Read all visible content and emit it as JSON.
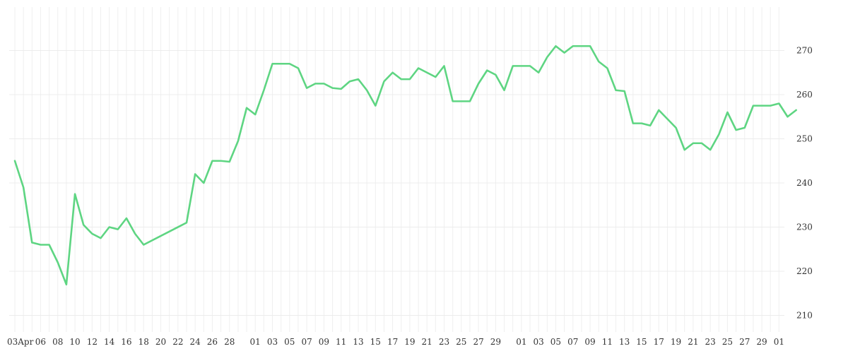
{
  "chart_data": {
    "type": "line",
    "title": "",
    "xlabel": "",
    "ylabel": "",
    "grid": true,
    "ylim": [
      206,
      276
    ],
    "y_ticks": [
      210,
      220,
      230,
      240,
      250,
      260,
      270
    ],
    "x_tick_labels": [
      "03Apr",
      "06",
      "08",
      "10",
      "12",
      "14",
      "16",
      "18",
      "20",
      "22",
      "24",
      "26",
      "28",
      "01",
      "03",
      "05",
      "07",
      "09",
      "11",
      "13",
      "15",
      "17",
      "19",
      "21",
      "23",
      "25",
      "27",
      "29",
      "01",
      "03",
      "05",
      "07",
      "09",
      "11",
      "13",
      "15",
      "17",
      "19",
      "21",
      "23",
      "25",
      "27",
      "29",
      "01"
    ],
    "series": [
      {
        "name": "",
        "color": "#5ed582",
        "values": [
          [
            "2020-04-03",
            245.0
          ],
          [
            "2020-04-04",
            239.0
          ],
          [
            "2020-04-05",
            226.5
          ],
          [
            "2020-04-06",
            226.0
          ],
          [
            "2020-04-07",
            226.0
          ],
          [
            "2020-04-08",
            222.0
          ],
          [
            "2020-04-09",
            217.0
          ],
          [
            "2020-04-10",
            237.5
          ],
          [
            "2020-04-11",
            230.5
          ],
          [
            "2020-04-12",
            228.5
          ],
          [
            "2020-04-13",
            227.5
          ],
          [
            "2020-04-14",
            230.0
          ],
          [
            "2020-04-15",
            229.5
          ],
          [
            "2020-04-16",
            232.0
          ],
          [
            "2020-04-17",
            228.5
          ],
          [
            "2020-04-18",
            226.0
          ],
          [
            "2020-04-23",
            231.0
          ],
          [
            "2020-04-24",
            242.0
          ],
          [
            "2020-04-25",
            240.0
          ],
          [
            "2020-04-26",
            245.0
          ],
          [
            "2020-04-27",
            245.0
          ],
          [
            "2020-04-28",
            244.8
          ],
          [
            "2020-04-29",
            249.5
          ],
          [
            "2020-04-30",
            257.0
          ],
          [
            "2020-05-01",
            255.5
          ],
          [
            "2020-05-02",
            261.0
          ],
          [
            "2020-05-03",
            267.0
          ],
          [
            "2020-05-04",
            267.0
          ],
          [
            "2020-05-05",
            267.0
          ],
          [
            "2020-05-06",
            266.0
          ],
          [
            "2020-05-07",
            261.5
          ],
          [
            "2020-05-08",
            262.5
          ],
          [
            "2020-05-09",
            262.5
          ],
          [
            "2020-05-10",
            261.5
          ],
          [
            "2020-05-11",
            261.3
          ],
          [
            "2020-05-12",
            263.0
          ],
          [
            "2020-05-13",
            263.5
          ],
          [
            "2020-05-14",
            261.0
          ],
          [
            "2020-05-15",
            257.5
          ],
          [
            "2020-05-16",
            263.0
          ],
          [
            "2020-05-17",
            265.0
          ],
          [
            "2020-05-18",
            263.5
          ],
          [
            "2020-05-19",
            263.5
          ],
          [
            "2020-05-20",
            266.0
          ],
          [
            "2020-05-21",
            265.0
          ],
          [
            "2020-05-22",
            264.0
          ],
          [
            "2020-05-23",
            266.5
          ],
          [
            "2020-05-24",
            258.5
          ],
          [
            "2020-05-25",
            258.5
          ],
          [
            "2020-05-26",
            258.5
          ],
          [
            "2020-05-27",
            262.5
          ],
          [
            "2020-05-28",
            265.5
          ],
          [
            "2020-05-29",
            264.5
          ],
          [
            "2020-05-30",
            261.0
          ],
          [
            "2020-05-31",
            266.5
          ],
          [
            "2020-06-01",
            266.5
          ],
          [
            "2020-06-02",
            266.5
          ],
          [
            "2020-06-03",
            265.0
          ],
          [
            "2020-06-04",
            268.5
          ],
          [
            "2020-06-05",
            271.0
          ],
          [
            "2020-06-06",
            269.5
          ],
          [
            "2020-06-07",
            271.0
          ],
          [
            "2020-06-08",
            271.0
          ],
          [
            "2020-06-09",
            271.0
          ],
          [
            "2020-06-10",
            267.5
          ],
          [
            "2020-06-11",
            266.0
          ],
          [
            "2020-06-12",
            261.0
          ],
          [
            "2020-06-13",
            260.8
          ],
          [
            "2020-06-14",
            253.5
          ],
          [
            "2020-06-15",
            253.5
          ],
          [
            "2020-06-16",
            253.0
          ],
          [
            "2020-06-17",
            256.5
          ],
          [
            "2020-06-18",
            254.5
          ],
          [
            "2020-06-19",
            252.5
          ],
          [
            "2020-06-20",
            247.5
          ],
          [
            "2020-06-21",
            249.0
          ],
          [
            "2020-06-22",
            249.0
          ],
          [
            "2020-06-23",
            247.5
          ],
          [
            "2020-06-24",
            251.0
          ],
          [
            "2020-06-25",
            256.0
          ],
          [
            "2020-06-26",
            252.0
          ],
          [
            "2020-06-27",
            252.5
          ],
          [
            "2020-06-28",
            257.5
          ],
          [
            "2020-06-29",
            257.5
          ],
          [
            "2020-06-30",
            257.5
          ],
          [
            "2020-07-01",
            258.0
          ],
          [
            "2020-07-02",
            255.0
          ],
          [
            "2020-07-03",
            256.5
          ]
        ]
      }
    ]
  }
}
